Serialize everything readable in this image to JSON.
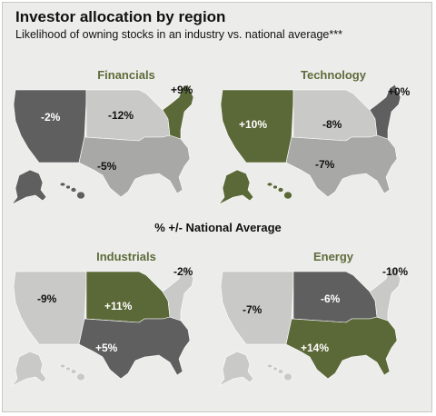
{
  "title": "Investor allocation by region",
  "subtitle": "Likelihood of owning stocks in an industry vs. national average***",
  "legend_label": "% +/- National Average",
  "colors": {
    "background": "#ececea",
    "light": "#c9c9c7",
    "medium": "#a8a8a6",
    "dark": "#5f5f5f",
    "olive": "#5b6837",
    "title_olive": "#5e6b3a"
  },
  "maps": [
    {
      "title": "Financials",
      "regions": {
        "west": {
          "label": "-2%",
          "shade": "dark"
        },
        "midwest": {
          "label": "-12%",
          "shade": "light"
        },
        "south": {
          "label": "-5%",
          "shade": "medium"
        },
        "northeast": {
          "label": "+9%",
          "shade": "olive"
        }
      }
    },
    {
      "title": "Technology",
      "regions": {
        "west": {
          "label": "+10%",
          "shade": "olive"
        },
        "midwest": {
          "label": "-8%",
          "shade": "light"
        },
        "south": {
          "label": "-7%",
          "shade": "medium"
        },
        "northeast": {
          "label": "+0%",
          "shade": "dark"
        }
      }
    },
    {
      "title": "Industrials",
      "regions": {
        "west": {
          "label": "-9%",
          "shade": "light"
        },
        "midwest": {
          "label": "+11%",
          "shade": "olive"
        },
        "south": {
          "label": "+5%",
          "shade": "dark"
        },
        "northeast": {
          "label": "-2%",
          "shade": "light"
        }
      }
    },
    {
      "title": "Energy",
      "regions": {
        "west": {
          "label": "-7%",
          "shade": "light"
        },
        "midwest": {
          "label": "-6%",
          "shade": "dark"
        },
        "south": {
          "label": "+14%",
          "shade": "olive"
        },
        "northeast": {
          "label": "-10%",
          "shade": "light"
        }
      }
    }
  ]
}
